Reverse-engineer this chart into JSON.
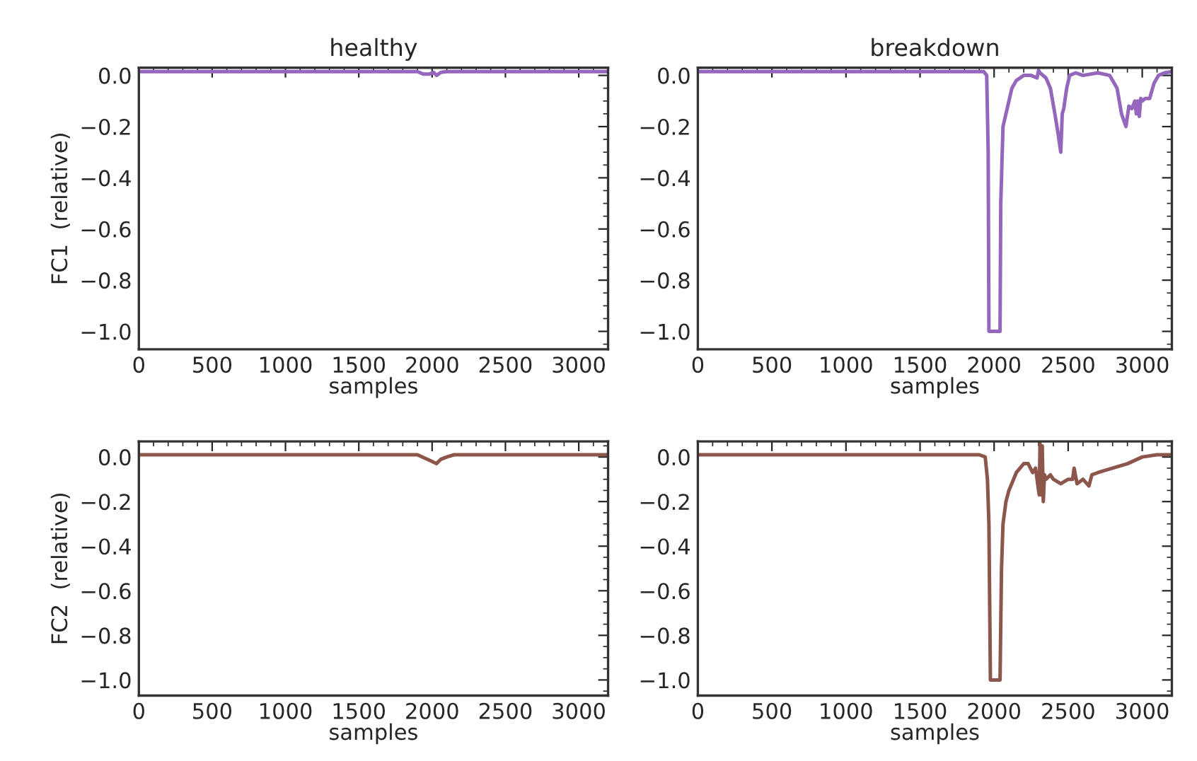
{
  "chart_data": [
    {
      "type": "line",
      "title": "healthy",
      "xlabel": "samples",
      "ylabel": "FC1  (relative)",
      "xlim": [
        0,
        3200
      ],
      "ylim": [
        -1.07,
        0.03
      ],
      "xticks": [
        0,
        500,
        1000,
        1500,
        2000,
        2500,
        3000
      ],
      "yticks": [
        {
          "value": -1.0,
          "label": "−1.0"
        },
        {
          "value": -0.8,
          "label": "−0.8"
        },
        {
          "value": -0.6,
          "label": "−0.6"
        },
        {
          "value": -0.4,
          "label": "−0.4"
        },
        {
          "value": -0.2,
          "label": "−0.2"
        },
        {
          "value": 0.0,
          "label": "0.0"
        }
      ],
      "grid": false,
      "legend": false,
      "series": [
        {
          "color": "#9467bd",
          "x": [
            0,
            500,
            1000,
            1500,
            1900,
            1940,
            1980,
            2010,
            2030,
            2060,
            2100,
            2500,
            3000,
            3200
          ],
          "values": [
            0.015,
            0.015,
            0.015,
            0.015,
            0.015,
            0.005,
            0.005,
            0.012,
            0.0,
            0.012,
            0.015,
            0.015,
            0.015,
            0.015
          ]
        }
      ]
    },
    {
      "type": "line",
      "title": "breakdown",
      "xlabel": "samples",
      "xlim": [
        0,
        3200
      ],
      "ylim": [
        -1.07,
        0.03
      ],
      "xticks": [
        0,
        500,
        1000,
        1500,
        2000,
        2500,
        3000
      ],
      "yticks": [
        {
          "value": -1.0,
          "label": "−1.0"
        },
        {
          "value": -0.8,
          "label": "−0.8"
        },
        {
          "value": -0.6,
          "label": "−0.6"
        },
        {
          "value": -0.4,
          "label": "−0.4"
        },
        {
          "value": -0.2,
          "label": "−0.2"
        },
        {
          "value": 0.0,
          "label": "0.0"
        }
      ],
      "grid": false,
      "legend": false,
      "series": [
        {
          "color": "#9467bd",
          "x": [
            0,
            500,
            1000,
            1500,
            1900,
            1930,
            1950,
            1960,
            1965,
            2000,
            2040,
            2045,
            2060,
            2080,
            2100,
            2120,
            2150,
            2200,
            2250,
            2290,
            2300,
            2310,
            2330,
            2350,
            2380,
            2410,
            2430,
            2450,
            2460,
            2470,
            2490,
            2510,
            2550,
            2600,
            2700,
            2780,
            2830,
            2860,
            2890,
            2910,
            2930,
            2950,
            2960,
            2970,
            2980,
            2990,
            3000,
            3020,
            3050,
            3080,
            3110,
            3150,
            3200
          ],
          "values": [
            0.015,
            0.015,
            0.015,
            0.015,
            0.015,
            0.015,
            0.0,
            -0.3,
            -1.0,
            -1.0,
            -1.0,
            -0.5,
            -0.2,
            -0.15,
            -0.1,
            -0.05,
            -0.02,
            0.0,
            0.0,
            -0.01,
            0.02,
            0.01,
            0.0,
            -0.01,
            -0.05,
            -0.15,
            -0.22,
            -0.3,
            -0.15,
            -0.13,
            -0.05,
            0.0,
            0.01,
            0.0,
            0.01,
            0.0,
            -0.05,
            -0.15,
            -0.2,
            -0.12,
            -0.13,
            -0.1,
            -0.15,
            -0.1,
            -0.16,
            -0.09,
            -0.1,
            -0.09,
            -0.09,
            -0.03,
            0.0,
            0.01,
            0.015
          ]
        }
      ]
    },
    {
      "type": "line",
      "xlabel": "samples",
      "ylabel": "FC2  (relative)",
      "xlim": [
        0,
        3200
      ],
      "ylim": [
        -1.07,
        0.07
      ],
      "xticks": [
        0,
        500,
        1000,
        1500,
        2000,
        2500,
        3000
      ],
      "yticks": [
        {
          "value": -1.0,
          "label": "−1.0"
        },
        {
          "value": -0.8,
          "label": "−0.8"
        },
        {
          "value": -0.6,
          "label": "−0.6"
        },
        {
          "value": -0.4,
          "label": "−0.4"
        },
        {
          "value": -0.2,
          "label": "−0.2"
        },
        {
          "value": 0.0,
          "label": "0.0"
        }
      ],
      "grid": false,
      "legend": false,
      "series": [
        {
          "color": "#8c564b",
          "x": [
            0,
            500,
            1000,
            1500,
            1900,
            1950,
            2000,
            2030,
            2060,
            2100,
            2150,
            2500,
            3000,
            3200
          ],
          "values": [
            0.01,
            0.01,
            0.01,
            0.01,
            0.01,
            -0.005,
            -0.02,
            -0.03,
            -0.01,
            0.0,
            0.01,
            0.01,
            0.01,
            0.01
          ]
        }
      ]
    },
    {
      "type": "line",
      "xlabel": "samples",
      "xlim": [
        0,
        3200
      ],
      "ylim": [
        -1.07,
        0.07
      ],
      "xticks": [
        0,
        500,
        1000,
        1500,
        2000,
        2500,
        3000
      ],
      "yticks": [
        {
          "value": -1.0,
          "label": "−1.0"
        },
        {
          "value": -0.8,
          "label": "−0.8"
        },
        {
          "value": -0.6,
          "label": "−0.6"
        },
        {
          "value": -0.4,
          "label": "−0.4"
        },
        {
          "value": -0.2,
          "label": "−0.2"
        },
        {
          "value": 0.0,
          "label": "0.0"
        }
      ],
      "grid": false,
      "legend": false,
      "series": [
        {
          "color": "#8c564b",
          "x": [
            0,
            500,
            1000,
            1500,
            1900,
            1940,
            1955,
            1965,
            1975,
            2000,
            2040,
            2050,
            2060,
            2080,
            2100,
            2150,
            2200,
            2230,
            2260,
            2280,
            2300,
            2305,
            2310,
            2318,
            2325,
            2332,
            2340,
            2350,
            2380,
            2400,
            2450,
            2500,
            2530,
            2540,
            2560,
            2600,
            2640,
            2660,
            2700,
            2800,
            2900,
            3000,
            3100,
            3200
          ],
          "values": [
            0.01,
            0.01,
            0.01,
            0.01,
            0.01,
            0.0,
            -0.1,
            -0.3,
            -1.0,
            -1.0,
            -1.0,
            -0.5,
            -0.3,
            -0.2,
            -0.15,
            -0.07,
            -0.03,
            -0.03,
            -0.07,
            -0.05,
            -0.15,
            -0.17,
            0.06,
            -0.17,
            0.05,
            -0.2,
            -0.08,
            -0.1,
            -0.08,
            -0.1,
            -0.12,
            -0.1,
            -0.1,
            -0.05,
            -0.12,
            -0.1,
            -0.13,
            -0.08,
            -0.07,
            -0.05,
            -0.03,
            0.0,
            0.01,
            0.01
          ]
        }
      ]
    }
  ]
}
